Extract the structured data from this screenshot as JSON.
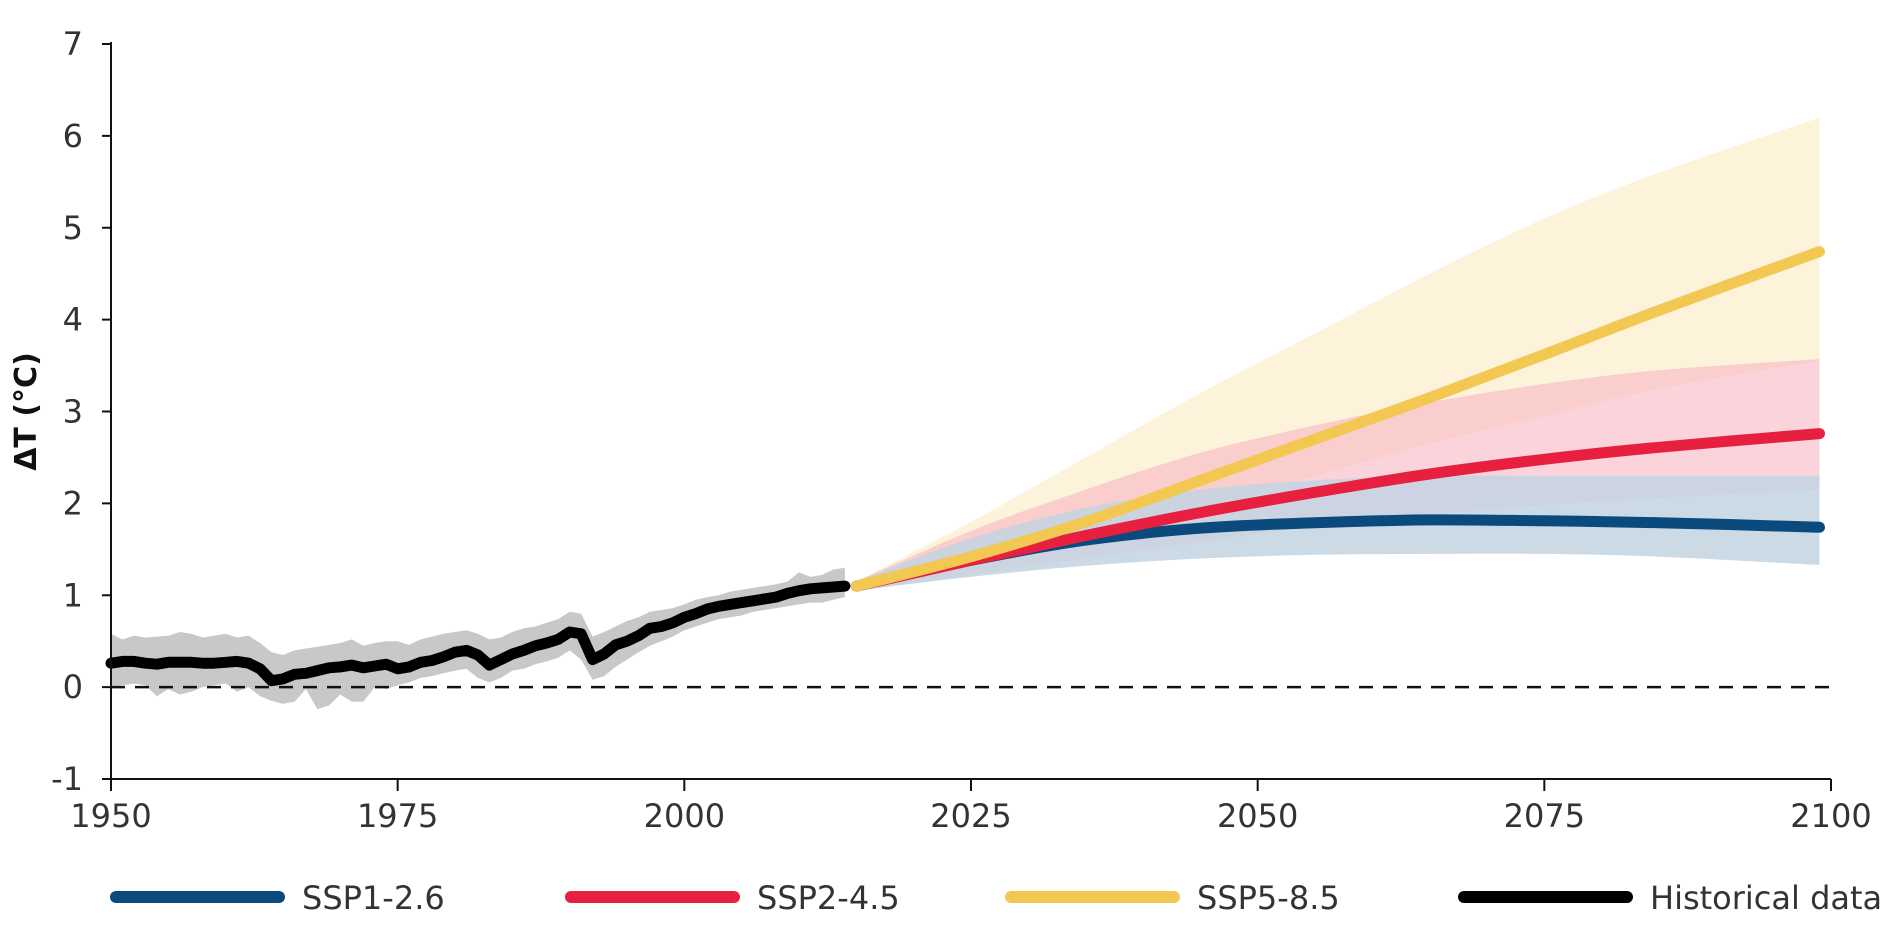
{
  "chart_data": {
    "type": "line",
    "ylabel": "ΔT (°C)",
    "xlim": [
      1950,
      2100
    ],
    "ylim": [
      -1,
      7
    ],
    "x_ticks": [
      1950,
      1975,
      2000,
      2025,
      2050,
      2075,
      2100
    ],
    "y_ticks": [
      7,
      6,
      5,
      4,
      3,
      2,
      1,
      0,
      -1
    ],
    "reference_line": {
      "y": 0,
      "style": "dashed"
    },
    "grid": false,
    "legend_position": "bottom",
    "series": [
      {
        "name": "SSP1-2.6",
        "color": "#0a4a7c",
        "band_color": "#c3d3e2",
        "x": [
          2015,
          2025,
          2035,
          2045,
          2055,
          2065,
          2075,
          2085,
          2099
        ],
        "values": [
          1.1,
          1.38,
          1.6,
          1.73,
          1.79,
          1.82,
          1.81,
          1.79,
          1.74
        ],
        "lower": [
          1.05,
          1.2,
          1.32,
          1.4,
          1.44,
          1.45,
          1.45,
          1.42,
          1.33
        ],
        "upper": [
          1.15,
          1.62,
          1.95,
          2.15,
          2.25,
          2.3,
          2.3,
          2.3,
          2.3
        ]
      },
      {
        "name": "SSP2-4.5",
        "color": "#e8203f",
        "band_color": "#f7b6c3",
        "x": [
          2015,
          2025,
          2035,
          2045,
          2055,
          2065,
          2075,
          2085,
          2099
        ],
        "values": [
          1.1,
          1.38,
          1.65,
          1.9,
          2.12,
          2.32,
          2.48,
          2.61,
          2.76
        ],
        "lower": [
          1.05,
          1.22,
          1.4,
          1.58,
          1.75,
          1.88,
          1.98,
          2.06,
          2.15
        ],
        "upper": [
          1.15,
          1.7,
          2.15,
          2.55,
          2.85,
          3.1,
          3.3,
          3.45,
          3.57
        ]
      },
      {
        "name": "SSP5-8.5",
        "color": "#f2c852",
        "band_color": "#fcefcf",
        "x": [
          2015,
          2025,
          2035,
          2045,
          2055,
          2065,
          2075,
          2085,
          2099
        ],
        "values": [
          1.1,
          1.42,
          1.8,
          2.25,
          2.7,
          3.15,
          3.62,
          4.1,
          4.74
        ],
        "lower": [
          1.05,
          1.3,
          1.6,
          1.95,
          2.3,
          2.65,
          2.95,
          3.25,
          3.55
        ],
        "upper": [
          1.15,
          1.8,
          2.5,
          3.2,
          3.85,
          4.5,
          5.1,
          5.6,
          6.2
        ]
      },
      {
        "name": "Historical data",
        "color": "#000000",
        "band_color": "#c8c8c8",
        "x": [
          1950,
          1951,
          1952,
          1953,
          1954,
          1955,
          1956,
          1957,
          1958,
          1959,
          1960,
          1961,
          1962,
          1963,
          1964,
          1965,
          1966,
          1967,
          1968,
          1969,
          1970,
          1971,
          1972,
          1973,
          1974,
          1975,
          1976,
          1977,
          1978,
          1979,
          1980,
          1981,
          1982,
          1983,
          1984,
          1985,
          1986,
          1987,
          1988,
          1989,
          1990,
          1991,
          1992,
          1993,
          1994,
          1995,
          1996,
          1997,
          1998,
          1999,
          2000,
          2001,
          2002,
          2003,
          2004,
          2005,
          2006,
          2007,
          2008,
          2009,
          2010,
          2011,
          2012,
          2013,
          2014
        ],
        "values": [
          0.26,
          0.28,
          0.28,
          0.26,
          0.25,
          0.27,
          0.27,
          0.27,
          0.26,
          0.26,
          0.27,
          0.28,
          0.26,
          0.2,
          0.07,
          0.09,
          0.14,
          0.15,
          0.18,
          0.21,
          0.22,
          0.24,
          0.21,
          0.23,
          0.25,
          0.2,
          0.22,
          0.27,
          0.29,
          0.33,
          0.38,
          0.4,
          0.35,
          0.24,
          0.3,
          0.36,
          0.4,
          0.45,
          0.48,
          0.52,
          0.6,
          0.58,
          0.3,
          0.36,
          0.46,
          0.5,
          0.56,
          0.64,
          0.66,
          0.7,
          0.76,
          0.8,
          0.85,
          0.88,
          0.9,
          0.92,
          0.94,
          0.96,
          0.98,
          1.02,
          1.05,
          1.07,
          1.08,
          1.09,
          1.1
        ],
        "lower": [
          0.0,
          0.02,
          0.04,
          0.02,
          -0.1,
          -0.02,
          -0.08,
          -0.05,
          0.0,
          0.02,
          0.04,
          -0.05,
          0.0,
          -0.1,
          -0.15,
          -0.18,
          -0.16,
          -0.02,
          -0.24,
          -0.2,
          -0.08,
          -0.16,
          -0.16,
          0.0,
          -0.02,
          0.02,
          0.05,
          0.1,
          0.12,
          0.15,
          0.18,
          0.2,
          0.1,
          0.05,
          0.1,
          0.18,
          0.2,
          0.25,
          0.28,
          0.32,
          0.4,
          0.3,
          0.08,
          0.12,
          0.22,
          0.3,
          0.38,
          0.45,
          0.5,
          0.55,
          0.62,
          0.66,
          0.7,
          0.74,
          0.76,
          0.78,
          0.82,
          0.84,
          0.86,
          0.88,
          0.9,
          0.92,
          0.92,
          0.95,
          0.98
        ],
        "upper": [
          0.58,
          0.52,
          0.56,
          0.54,
          0.55,
          0.56,
          0.6,
          0.58,
          0.54,
          0.56,
          0.58,
          0.54,
          0.56,
          0.48,
          0.38,
          0.35,
          0.4,
          0.42,
          0.44,
          0.46,
          0.48,
          0.52,
          0.45,
          0.48,
          0.5,
          0.5,
          0.46,
          0.52,
          0.55,
          0.58,
          0.6,
          0.62,
          0.58,
          0.52,
          0.54,
          0.6,
          0.64,
          0.66,
          0.7,
          0.74,
          0.82,
          0.8,
          0.55,
          0.6,
          0.66,
          0.72,
          0.76,
          0.82,
          0.84,
          0.86,
          0.9,
          0.95,
          0.98,
          1.0,
          1.04,
          1.06,
          1.08,
          1.1,
          1.12,
          1.15,
          1.25,
          1.2,
          1.22,
          1.28,
          1.3
        ]
      }
    ]
  }
}
